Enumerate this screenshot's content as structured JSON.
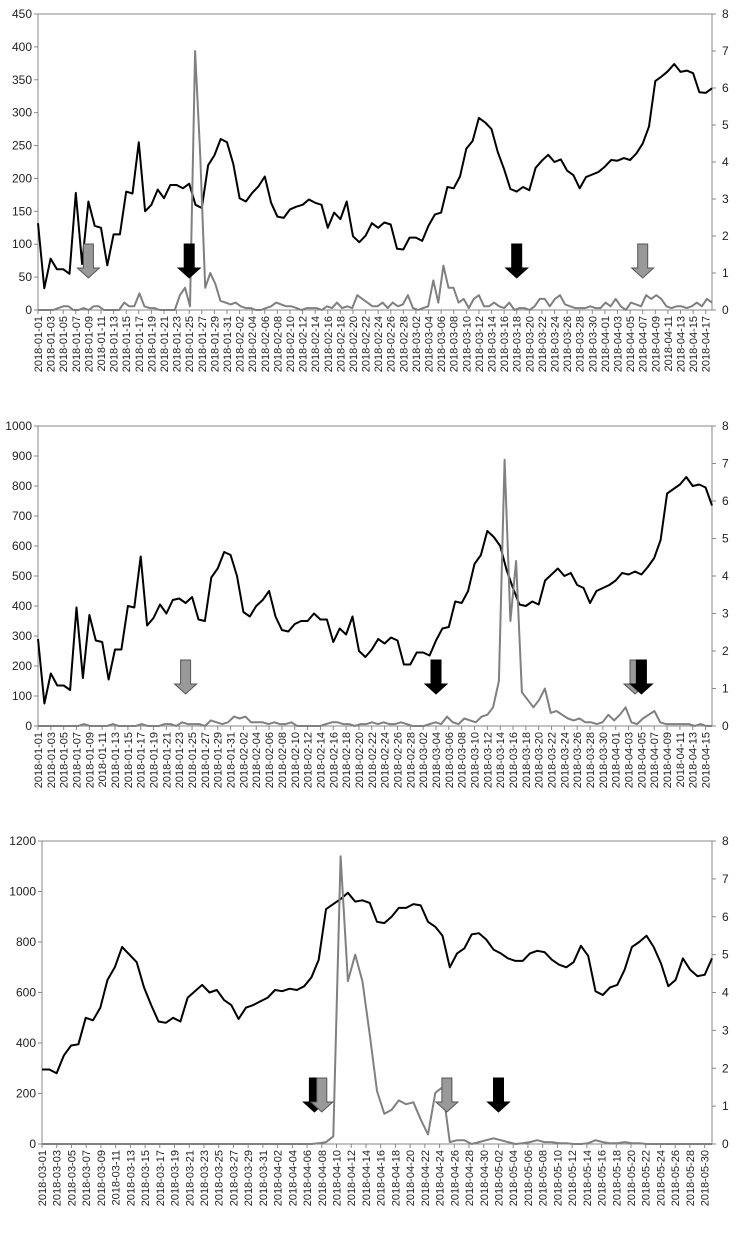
{
  "chart_data": [
    {
      "type": "line",
      "title": "",
      "xlabel": "",
      "ylabel": "",
      "y_left": {
        "ylim": [
          0,
          450
        ],
        "ticks": [
          0,
          50,
          100,
          150,
          200,
          250,
          300,
          350,
          400,
          450
        ]
      },
      "y_right": {
        "ylim": [
          0,
          8
        ],
        "ticks": [
          0,
          1,
          2,
          3,
          4,
          5,
          6,
          7,
          8
        ]
      },
      "grid": false,
      "legend": "none",
      "x_start": "2018-01-01",
      "x_end": "2018-04-18",
      "tick_labels": [
        "2018-01-01",
        "2018-01-03",
        "2018-01-05",
        "2018-01-07",
        "2018-01-09",
        "2018-01-11",
        "2018-01-13",
        "2018-01-15",
        "2018-01-17",
        "2018-01-19",
        "2018-01-21",
        "2018-01-23",
        "2018-01-25",
        "2018-01-27",
        "2018-01-29",
        "2018-01-31",
        "2018-02-02",
        "2018-02-04",
        "2018-02-06",
        "2018-02-08",
        "2018-02-10",
        "2018-02-12",
        "2018-02-14",
        "2018-02-16",
        "2018-02-18",
        "2018-02-20",
        "2018-02-22",
        "2018-02-24",
        "2018-02-26",
        "2018-02-28",
        "2018-03-02",
        "2018-03-04",
        "2018-03-06",
        "2018-03-08",
        "2018-03-10",
        "2018-03-12",
        "2018-03-14",
        "2018-03-16",
        "2018-03-18",
        "2018-03-20",
        "2018-03-22",
        "2018-03-24",
        "2018-03-26",
        "2018-03-28",
        "2018-03-30",
        "2018-04-01",
        "2018-04-03",
        "2018-04-05",
        "2018-04-07",
        "2018-04-09",
        "2018-04-11",
        "2018-04-13",
        "2018-04-15",
        "2018-04-17"
      ],
      "series": [
        {
          "axis": "left",
          "color": "#000000",
          "width": 2,
          "values": [
            132,
            33,
            78,
            62,
            62,
            55,
            178,
            70,
            165,
            128,
            125,
            68,
            115,
            115,
            180,
            177,
            255,
            150,
            160,
            183,
            170,
            190,
            190,
            185,
            192,
            160,
            155,
            220,
            235,
            260,
            255,
            222,
            170,
            165,
            178,
            188,
            203,
            163,
            142,
            140,
            153,
            157,
            160,
            168,
            163,
            160,
            125,
            148,
            138,
            165,
            112,
            103,
            113,
            132,
            125,
            133,
            130,
            93,
            92,
            110,
            110,
            105,
            128,
            145,
            148,
            187,
            185,
            203,
            245,
            257,
            292,
            285,
            275,
            240,
            214,
            184,
            180,
            187,
            182,
            216,
            227,
            236,
            225,
            229,
            212,
            205,
            185,
            202,
            206,
            210,
            218,
            228,
            227,
            231,
            228,
            238,
            253,
            279,
            348,
            355,
            363,
            374,
            362,
            364,
            360,
            331,
            330,
            337
          ]
        },
        {
          "axis": "right",
          "color": "#808080",
          "width": 2,
          "values": [
            0,
            0,
            0,
            0,
            0.05,
            0.1,
            0.1,
            0,
            0,
            0.05,
            0,
            0.1,
            0.1,
            0,
            0,
            0,
            0,
            0.2,
            0.1,
            0.1,
            0.45,
            0.1,
            0.05,
            0.05,
            0,
            0,
            0,
            0,
            0.4,
            0.6,
            0.1,
            7,
            4.2,
            0.6,
            1,
            0.7,
            0.25,
            0.2,
            0.15,
            0.2,
            0.1,
            0.05,
            0.05,
            0,
            0,
            0.05,
            0.1,
            0.2,
            0.15,
            0.1,
            0.1,
            0.05,
            0,
            0.05,
            0.05,
            0.05,
            0,
            0.1,
            0.05,
            0.2,
            0.05,
            0.1,
            0.05,
            0.4,
            0.3,
            0.2,
            0.1,
            0.1,
            0.2,
            0.05,
            0.2,
            0.1,
            0.15,
            0.4,
            0.05,
            0,
            0.05,
            0.1,
            0.8,
            0.2,
            1.2,
            0.6,
            0.6,
            0.2,
            0.3,
            0.05,
            0.3,
            0.4,
            0.1,
            0.1,
            0.2,
            0.1,
            0.05,
            0.2,
            0,
            0.05,
            0.05,
            0,
            0.1,
            0.3,
            0.3,
            0.1,
            0.3,
            0.4,
            0.15,
            0.1,
            0.05,
            0.05,
            0.05,
            0.1,
            0.05,
            0.05,
            0.2,
            0.1,
            0.3,
            0.1,
            0,
            0.2,
            0.15,
            0.1,
            0.4,
            0.3,
            0.4,
            0.3,
            0.1,
            0.05,
            0.1,
            0.1,
            0.05,
            0.1,
            0.2,
            0.1,
            0.3,
            0.2
          ]
        }
      ],
      "markers": [
        {
          "kind": "gray",
          "date": "2018-01-09"
        },
        {
          "kind": "black",
          "date": "2018-01-25"
        },
        {
          "kind": "black",
          "date": "2018-03-18"
        },
        {
          "kind": "gray",
          "date": "2018-04-07"
        }
      ]
    },
    {
      "type": "line",
      "title": "",
      "xlabel": "",
      "ylabel": "",
      "y_left": {
        "ylim": [
          0,
          1000
        ],
        "ticks": [
          0,
          100,
          200,
          300,
          400,
          500,
          600,
          700,
          800,
          900,
          1000
        ]
      },
      "y_right": {
        "ylim": [
          0,
          8
        ],
        "ticks": [
          0,
          1,
          2,
          3,
          4,
          5,
          6,
          7,
          8
        ]
      },
      "grid": false,
      "legend": "none",
      "x_start": "2018-01-01",
      "x_end": "2018-04-16",
      "tick_labels": [
        "2018-01-01",
        "2018-01-03",
        "2018-01-05",
        "2018-01-07",
        "2018-01-09",
        "2018-01-11",
        "2018-01-13",
        "2018-01-15",
        "2018-01-17",
        "2018-01-19",
        "2018-01-21",
        "2018-01-23",
        "2018-01-25",
        "2018-01-27",
        "2018-01-29",
        "2018-01-31",
        "2018-02-02",
        "2018-02-04",
        "2018-02-06",
        "2018-02-08",
        "2018-02-10",
        "2018-02-12",
        "2018-02-14",
        "2018-02-16",
        "2018-02-18",
        "2018-02-20",
        "2018-02-22",
        "2018-02-24",
        "2018-02-26",
        "2018-02-28",
        "2018-03-02",
        "2018-03-04",
        "2018-03-06",
        "2018-03-08",
        "2018-03-10",
        "2018-03-12",
        "2018-03-14",
        "2018-03-16",
        "2018-03-18",
        "2018-03-20",
        "2018-03-22",
        "2018-03-24",
        "2018-03-26",
        "2018-03-28",
        "2018-03-30",
        "2018-04-01",
        "2018-04-03",
        "2018-04-05",
        "2018-04-07",
        "2018-04-09",
        "2018-04-11",
        "2018-04-13",
        "2018-04-15"
      ],
      "series": [
        {
          "axis": "left",
          "color": "#000000",
          "width": 2,
          "values": [
            290,
            75,
            175,
            135,
            135,
            120,
            395,
            160,
            370,
            285,
            280,
            155,
            255,
            255,
            400,
            395,
            565,
            335,
            360,
            405,
            375,
            420,
            425,
            410,
            430,
            355,
            350,
            495,
            525,
            580,
            570,
            500,
            380,
            365,
            400,
            420,
            450,
            365,
            320,
            315,
            340,
            350,
            350,
            375,
            355,
            355,
            280,
            325,
            305,
            365,
            250,
            230,
            255,
            290,
            275,
            295,
            285,
            205,
            205,
            245,
            245,
            235,
            285,
            325,
            330,
            415,
            410,
            450,
            540,
            570,
            650,
            630,
            600,
            520,
            460,
            405,
            400,
            415,
            405,
            485,
            505,
            525,
            500,
            510,
            470,
            460,
            410,
            450,
            460,
            470,
            485,
            510,
            505,
            515,
            505,
            530,
            560,
            620,
            775,
            790,
            805,
            830,
            800,
            805,
            795,
            735
          ]
        },
        {
          "axis": "right",
          "color": "#808080",
          "width": 2,
          "values": [
            0,
            0,
            0,
            0,
            0,
            0,
            0,
            0,
            0.05,
            0,
            0,
            0,
            0,
            0.05,
            0,
            0,
            0,
            0,
            0.05,
            0,
            0,
            0,
            0.05,
            0.05,
            0,
            0.1,
            0.05,
            0.05,
            0.05,
            0,
            0.15,
            0.1,
            0.05,
            0.1,
            0.25,
            0.2,
            0.25,
            0.1,
            0.1,
            0.1,
            0.05,
            0.1,
            0.05,
            0.05,
            0.1,
            0,
            0,
            0,
            0,
            0,
            0.05,
            0.1,
            0.1,
            0.05,
            0.05,
            0,
            0.05,
            0.05,
            0.1,
            0.05,
            0.1,
            0.05,
            0.05,
            0.1,
            0.05,
            0,
            0,
            0,
            0.05,
            0.1,
            0.05,
            0.25,
            0.1,
            0.05,
            0.2,
            0.15,
            0.1,
            0.25,
            0.3,
            0.5,
            1.2,
            7.1,
            2.8,
            4.4,
            0.9,
            0.7,
            0.5,
            0.7,
            1,
            0.35,
            0.4,
            0.3,
            0.2,
            0.15,
            0.2,
            0.1,
            0.1,
            0.05,
            0.1,
            0.3,
            0.15,
            0.3,
            0.5,
            0.1,
            0.05,
            0.2,
            0.3,
            0.4,
            0.1,
            0.05,
            0.05,
            0.05,
            0.05,
            0.05,
            0,
            0.05,
            0,
            0
          ]
        }
      ],
      "markers": [
        {
          "kind": "gray",
          "date": "2018-01-24"
        },
        {
          "kind": "black",
          "date": "2018-03-04"
        },
        {
          "kind": "gray",
          "date": "2018-04-04"
        },
        {
          "kind": "black",
          "date": "2018-04-05"
        }
      ]
    },
    {
      "type": "line",
      "title": "",
      "xlabel": "",
      "ylabel": "",
      "y_left": {
        "ylim": [
          0,
          1200
        ],
        "ticks": [
          0,
          200,
          400,
          600,
          800,
          1000,
          1200
        ]
      },
      "y_right": {
        "ylim": [
          0,
          8
        ],
        "ticks": [
          0,
          1,
          2,
          3,
          4,
          5,
          6,
          7,
          8
        ]
      },
      "grid": false,
      "legend": "none",
      "x_start": "2018-03-01",
      "x_end": "2018-05-31",
      "tick_labels": [
        "2018-03-01",
        "2018-03-03",
        "2018-03-05",
        "2018-03-07",
        "2018-03-09",
        "2018-03-11",
        "2018-03-13",
        "2018-03-15",
        "2018-03-17",
        "2018-03-19",
        "2018-03-21",
        "2018-03-23",
        "2018-03-25",
        "2018-03-27",
        "2018-03-29",
        "2018-03-31",
        "2018-04-02",
        "2018-04-04",
        "2018-04-06",
        "2018-04-08",
        "2018-04-10",
        "2018-04-12",
        "2018-04-14",
        "2018-04-16",
        "2018-04-18",
        "2018-04-20",
        "2018-04-22",
        "2018-04-24",
        "2018-04-26",
        "2018-04-28",
        "2018-04-30",
        "2018-05-02",
        "2018-05-04",
        "2018-05-06",
        "2018-05-08",
        "2018-05-10",
        "2018-05-12",
        "2018-05-14",
        "2018-05-16",
        "2018-05-18",
        "2018-05-20",
        "2018-05-22",
        "2018-05-24",
        "2018-05-26",
        "2018-05-28",
        "2018-05-30"
      ],
      "series": [
        {
          "axis": "left",
          "color": "#000000",
          "width": 2,
          "values": [
            295,
            295,
            280,
            350,
            390,
            395,
            500,
            490,
            540,
            650,
            700,
            780,
            750,
            720,
            620,
            550,
            485,
            480,
            500,
            485,
            580,
            605,
            630,
            600,
            610,
            570,
            550,
            495,
            540,
            550,
            565,
            580,
            610,
            605,
            615,
            610,
            625,
            660,
            730,
            930,
            950,
            970,
            995,
            960,
            965,
            955,
            880,
            875,
            900,
            935,
            935,
            950,
            945,
            880,
            860,
            825,
            700,
            755,
            775,
            830,
            835,
            810,
            770,
            755,
            735,
            725,
            725,
            755,
            765,
            760,
            730,
            710,
            700,
            720,
            785,
            745,
            605,
            590,
            620,
            630,
            690,
            780,
            800,
            825,
            780,
            715,
            625,
            650,
            735,
            690,
            665,
            670,
            735
          ]
        },
        {
          "axis": "right",
          "color": "#808080",
          "width": 2,
          "values": [
            0,
            0,
            0,
            0,
            0,
            0,
            0,
            0,
            0,
            0,
            0,
            0,
            0,
            0,
            0,
            0,
            0,
            0,
            0,
            0,
            0,
            0,
            0,
            0,
            0,
            0,
            0,
            0,
            0,
            0,
            0,
            0,
            0,
            0,
            0,
            0,
            0,
            0,
            0.02,
            0.05,
            0.2,
            7.6,
            4.3,
            5.0,
            4.3,
            2.9,
            1.4,
            0.8,
            0.9,
            1.15,
            1.05,
            1.1,
            0.65,
            0.25,
            1.35,
            1.5,
            0.05,
            0.1,
            0.1,
            0,
            0.05,
            0.1,
            0.15,
            0.1,
            0.05,
            0,
            0.02,
            0.05,
            0.1,
            0.05,
            0.05,
            0.02,
            0.02,
            0,
            0,
            0.02,
            0.1,
            0.05,
            0.02,
            0.02,
            0.05,
            0.02,
            0.02,
            0,
            0,
            0,
            0,
            0,
            0,
            0,
            0,
            0,
            0
          ]
        }
      ],
      "markers": [
        {
          "kind": "black",
          "date": "2018-04-07"
        },
        {
          "kind": "gray",
          "date": "2018-04-08"
        },
        {
          "kind": "gray",
          "date": "2018-04-25"
        },
        {
          "kind": "black",
          "date": "2018-05-02"
        }
      ]
    }
  ]
}
